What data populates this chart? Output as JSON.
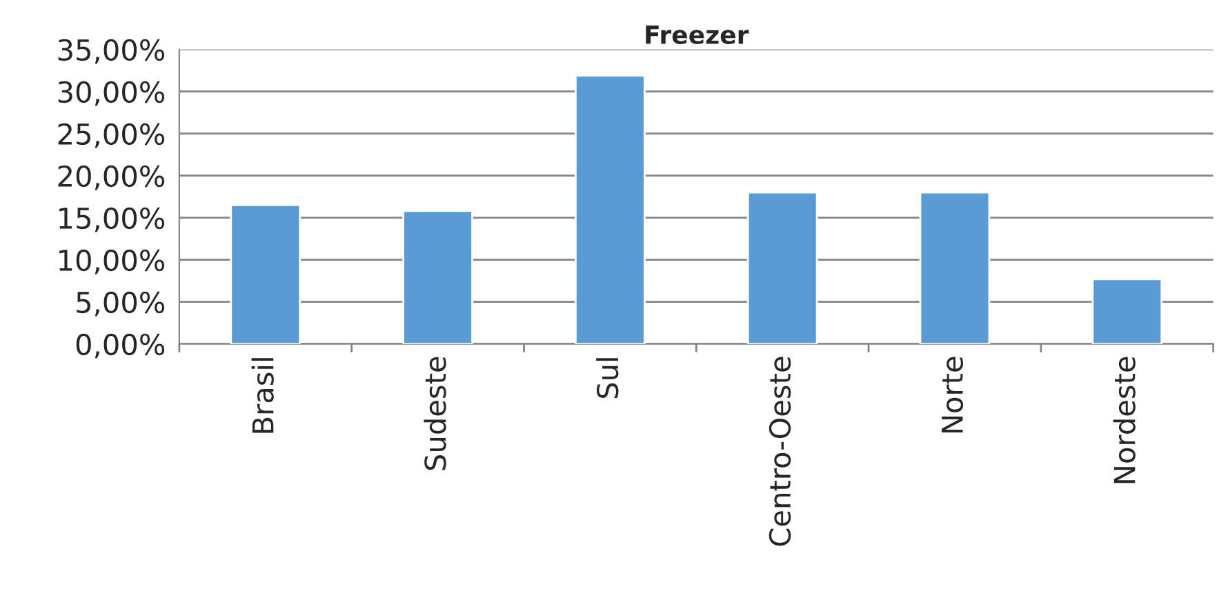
{
  "chart_data": {
    "type": "bar",
    "title": "Freezer",
    "categories": [
      "Brasil",
      "Sudeste",
      "Sul",
      "Centro-Oeste",
      "Norte",
      "Nordeste"
    ],
    "values": [
      16.5,
      15.8,
      31.9,
      18.0,
      18.0,
      7.7
    ],
    "color": "#5b9bd5",
    "ylim": [
      0,
      35
    ],
    "yticks": [
      {
        "value": 0,
        "label": "0,00%"
      },
      {
        "value": 5,
        "label": "5,00%"
      },
      {
        "value": 10,
        "label": "10,00%"
      },
      {
        "value": 15,
        "label": "15,00%"
      },
      {
        "value": 20,
        "label": "20,00%"
      },
      {
        "value": 25,
        "label": "25,00%"
      },
      {
        "value": 30,
        "label": "30,00%"
      },
      {
        "value": 35,
        "label": "35,00%"
      }
    ],
    "grid": "y"
  }
}
